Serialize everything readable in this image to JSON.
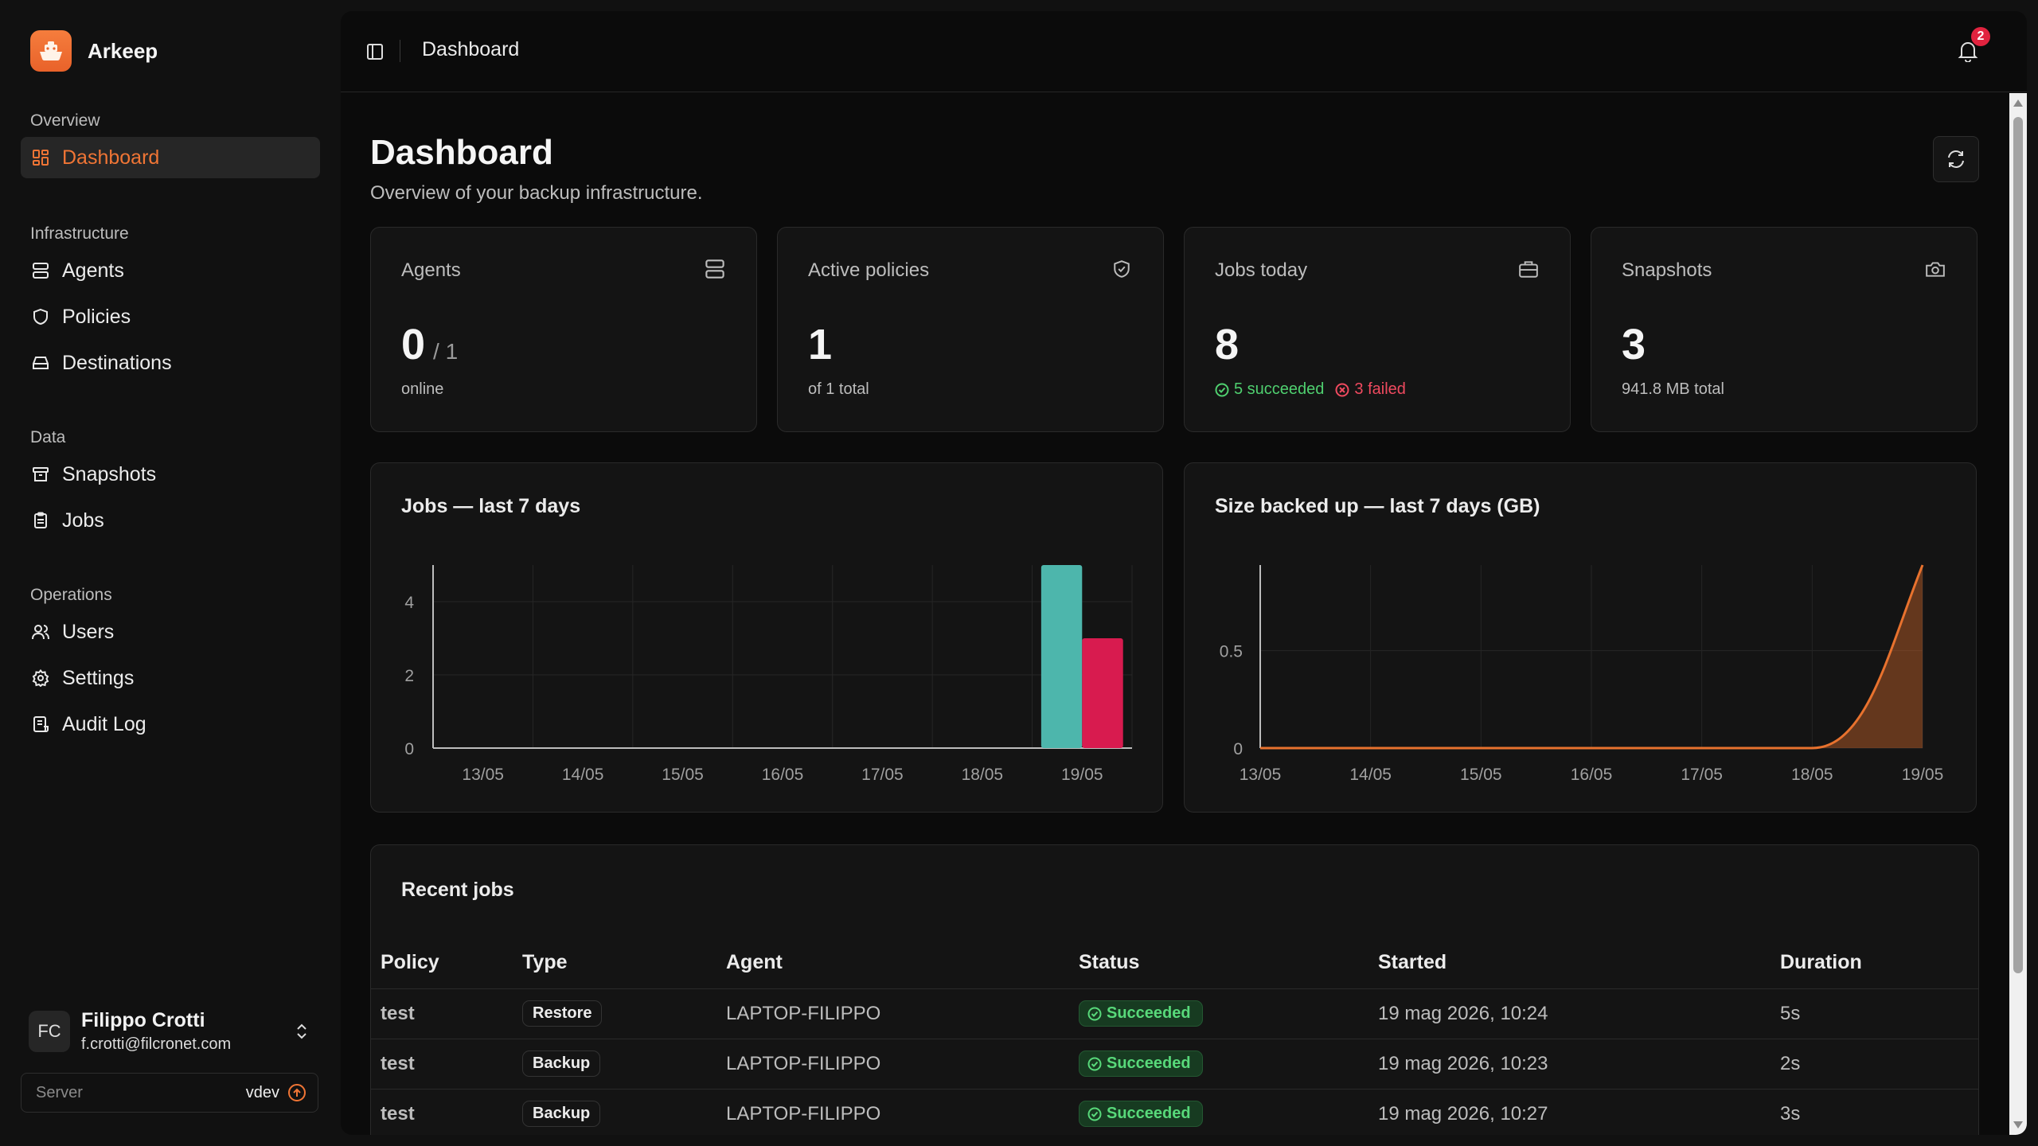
{
  "app": {
    "name": "Arkeep"
  },
  "sidebar": {
    "groups": [
      {
        "title": "Overview",
        "items": [
          {
            "label": "Dashboard",
            "icon": "dashboard-icon",
            "active": true
          }
        ]
      },
      {
        "title": "Infrastructure",
        "items": [
          {
            "label": "Agents",
            "icon": "server-icon"
          },
          {
            "label": "Policies",
            "icon": "shield-icon"
          },
          {
            "label": "Destinations",
            "icon": "hard-drive-icon"
          }
        ]
      },
      {
        "title": "Data",
        "items": [
          {
            "label": "Snapshots",
            "icon": "archive-icon"
          },
          {
            "label": "Jobs",
            "icon": "clipboard-icon"
          }
        ]
      },
      {
        "title": "Operations",
        "items": [
          {
            "label": "Users",
            "icon": "users-icon"
          },
          {
            "label": "Settings",
            "icon": "gear-icon"
          },
          {
            "label": "Audit Log",
            "icon": "log-icon"
          }
        ]
      }
    ],
    "user": {
      "initials": "FC",
      "name": "Filippo Crotti",
      "email": "f.crotti@filcronet.com"
    },
    "server": {
      "label": "Server",
      "version": "vdev"
    }
  },
  "topbar": {
    "title": "Dashboard",
    "notification_count": "2"
  },
  "page": {
    "title": "Dashboard",
    "subtitle": "Overview of your backup infrastructure."
  },
  "stats": {
    "agents": {
      "title": "Agents",
      "value": "0",
      "suffix": "/ 1",
      "sub": "online"
    },
    "policies": {
      "title": "Active policies",
      "value": "1",
      "sub": "of 1 total"
    },
    "jobs_today": {
      "title": "Jobs today",
      "value": "8",
      "succeeded": "5 succeeded",
      "failed": "3 failed"
    },
    "snapshots": {
      "title": "Snapshots",
      "value": "3",
      "sub": "941.8 MB total"
    }
  },
  "colors": {
    "accent": "#f07535",
    "succeeded": "#4db6ac",
    "failed": "#d81b4f",
    "area": "#e8722e"
  },
  "chart_data": [
    {
      "type": "bar",
      "title": "Jobs — last 7 days",
      "categories": [
        "13/05",
        "14/05",
        "15/05",
        "16/05",
        "17/05",
        "18/05",
        "19/05"
      ],
      "series": [
        {
          "values": [
            0,
            0,
            0,
            0,
            0,
            0,
            5
          ]
        },
        {
          "values": [
            0,
            0,
            0,
            0,
            0,
            0,
            3
          ]
        }
      ],
      "yticks": [
        "0",
        "2",
        "4"
      ],
      "ylim": [
        0,
        5
      ],
      "grid": true
    },
    {
      "type": "area",
      "title": "Size backed up — last 7 days (GB)",
      "categories": [
        "13/05",
        "14/05",
        "15/05",
        "16/05",
        "17/05",
        "18/05",
        "19/05"
      ],
      "values": [
        0,
        0,
        0,
        0,
        0,
        0,
        0.94
      ],
      "yticks": [
        "0",
        "0.5"
      ],
      "ylim": [
        0,
        0.94
      ],
      "grid": true
    }
  ],
  "recent_jobs": {
    "title": "Recent jobs",
    "columns": [
      "Policy",
      "Type",
      "Agent",
      "Status",
      "Started",
      "Duration"
    ],
    "rows": [
      {
        "policy": "test",
        "type": "Restore",
        "agent": "LAPTOP-FILIPPO",
        "status": "Succeeded",
        "started": "19 mag 2026, 10:24",
        "duration": "5s"
      },
      {
        "policy": "test",
        "type": "Backup",
        "agent": "LAPTOP-FILIPPO",
        "status": "Succeeded",
        "started": "19 mag 2026, 10:23",
        "duration": "2s"
      },
      {
        "policy": "test",
        "type": "Backup",
        "agent": "LAPTOP-FILIPPO",
        "status": "Succeeded",
        "started": "19 mag 2026, 10:27",
        "duration": "3s"
      }
    ]
  }
}
